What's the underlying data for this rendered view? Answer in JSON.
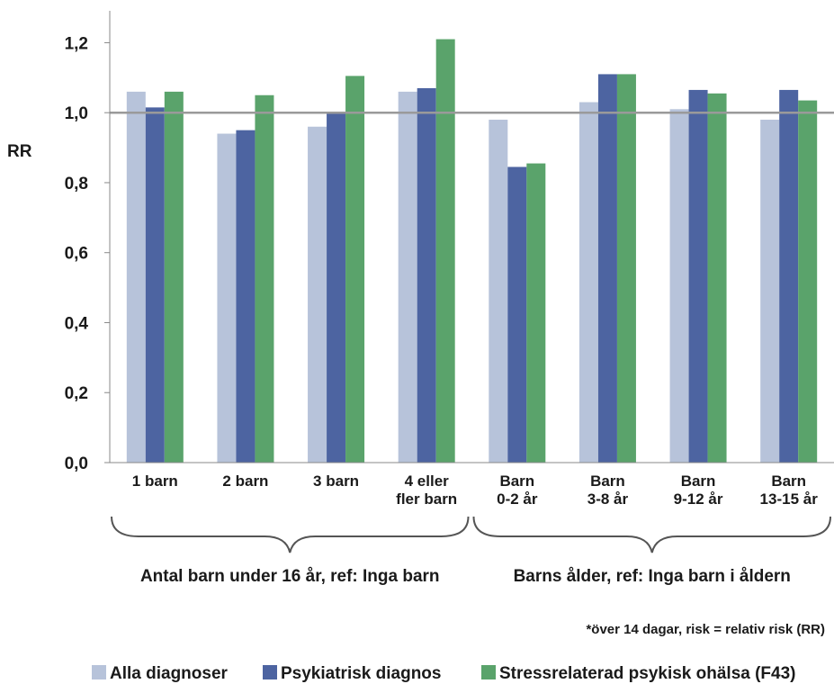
{
  "chart_data": {
    "type": "bar",
    "ylabel": "RR",
    "ylim": [
      0,
      1.25
    ],
    "yticks": [
      "0,0",
      "0,2",
      "0,4",
      "0,6",
      "0,8",
      "1,0",
      "1,2"
    ],
    "ytick_values": [
      0,
      0.2,
      0.4,
      0.6,
      0.8,
      1.0,
      1.2
    ],
    "reference_line": 1.0,
    "categories": [
      [
        "1 barn"
      ],
      [
        "2 barn"
      ],
      [
        "3 barn"
      ],
      [
        "4 eller",
        "fler barn"
      ],
      [
        "Barn",
        "0-2 år"
      ],
      [
        "Barn",
        "3-8 år"
      ],
      [
        "Barn",
        "9-12 år"
      ],
      [
        "Barn",
        "13-15 år"
      ]
    ],
    "series": [
      {
        "name": "Alla diagnoser",
        "color": "#b7c3da",
        "values": [
          1.06,
          0.94,
          0.96,
          1.06,
          0.98,
          1.03,
          1.01,
          0.98
        ]
      },
      {
        "name": "Psykiatrisk diagnos",
        "color": "#4d64a1",
        "values": [
          1.015,
          0.95,
          1.0,
          1.07,
          0.845,
          1.11,
          1.065,
          1.065
        ]
      },
      {
        "name": "Stressrelaterad psykisk ohälsa (F43)",
        "color": "#5aa36b",
        "values": [
          1.06,
          1.05,
          1.105,
          1.21,
          0.855,
          1.11,
          1.055,
          1.035
        ]
      }
    ],
    "groups": [
      {
        "label": "Antal barn under 16 år, ref: Inga barn",
        "from": 0,
        "to": 3
      },
      {
        "label": "Barns ålder, ref: Inga barn i åldern",
        "from": 4,
        "to": 7
      }
    ],
    "note": "*över 14 dagar, risk = relativ risk (RR)",
    "legend_position": "bottom"
  }
}
